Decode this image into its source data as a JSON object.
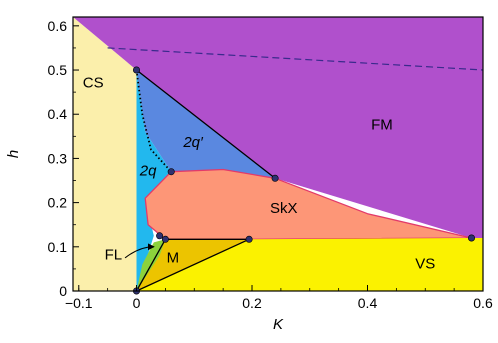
{
  "chart_data": {
    "type": "area",
    "title": "",
    "xlabel": "K",
    "ylabel": "h",
    "xlim": [
      -0.11,
      0.6
    ],
    "ylim": [
      0,
      0.62
    ],
    "xticks": [
      {
        "value": -0.1,
        "label": "−0.1"
      },
      {
        "value": 0,
        "label": "0"
      },
      {
        "value": 0.2,
        "label": "0.2"
      },
      {
        "value": 0.4,
        "label": "0.4"
      },
      {
        "value": 0.6,
        "label": "0.6"
      }
    ],
    "yticks": [
      {
        "value": 0,
        "label": "0"
      },
      {
        "value": 0.1,
        "label": "0.1"
      },
      {
        "value": 0.2,
        "label": "0.2"
      },
      {
        "value": 0.3,
        "label": "0.3"
      },
      {
        "value": 0.4,
        "label": "0.4"
      },
      {
        "value": 0.5,
        "label": "0.5"
      },
      {
        "value": 0.6,
        "label": "0.6"
      }
    ],
    "regions": [
      {
        "label": "CS",
        "color": "#fbefab",
        "label_at": [
          -0.075,
          0.47
        ],
        "polygon": [
          [
            -0.11,
            0
          ],
          [
            0,
            0
          ],
          [
            0,
            0.5
          ],
          [
            -0.11,
            0.62
          ]
        ]
      },
      {
        "label": "FM",
        "color": "#b050cc",
        "label_at": [
          0.425,
          0.375
        ],
        "polygon": [
          [
            -0.11,
            0.62
          ],
          [
            0.6,
            0.62
          ],
          [
            0.6,
            0.12
          ],
          [
            0.58,
            0.12
          ],
          [
            0.24,
            0.255
          ],
          [
            0,
            0.5
          ]
        ]
      },
      {
        "label": "2q′",
        "color": "#5a88e0",
        "label_at": [
          0.098,
          0.335
        ],
        "polygon": [
          [
            0,
            0.5
          ],
          [
            0.24,
            0.255
          ],
          [
            0.06,
            0.27
          ],
          [
            0.015,
            0.36
          ]
        ]
      },
      {
        "label": "2q",
        "color": "#22b8ee",
        "label_at": [
          0.02,
          0.27
        ],
        "polygon": [
          [
            0,
            0.5
          ],
          [
            0.015,
            0.36
          ],
          [
            0.06,
            0.27
          ],
          [
            0.015,
            0.21
          ],
          [
            0.03,
            0.125
          ],
          [
            0.0,
            0.0
          ]
        ]
      },
      {
        "label": "SkX",
        "color": "#fd9677",
        "label_at": [
          0.255,
          0.185
        ],
        "polygon": [
          [
            0.06,
            0.27
          ],
          [
            0.15,
            0.275
          ],
          [
            0.24,
            0.255
          ],
          [
            0.4,
            0.175
          ],
          [
            0.58,
            0.12
          ],
          [
            0.3,
            0.118
          ],
          [
            0.195,
            0.117
          ],
          [
            0.05,
            0.117
          ],
          [
            0.02,
            0.15
          ],
          [
            0.015,
            0.21
          ]
        ]
      },
      {
        "label": "VS",
        "color": "#fbf200",
        "label_at": [
          0.5,
          0.06
        ],
        "polygon": [
          [
            0,
            0
          ],
          [
            0.195,
            0.117
          ],
          [
            0.58,
            0.12
          ],
          [
            0.6,
            0.12
          ],
          [
            0.6,
            0
          ],
          [
            0,
            0
          ]
        ]
      },
      {
        "label": "M",
        "color": "#ecc400",
        "label_at": [
          0.063,
          0.073
        ],
        "polygon": [
          [
            0,
            0
          ],
          [
            0.05,
            0.117
          ],
          [
            0.195,
            0.117
          ]
        ]
      },
      {
        "label": "FL",
        "color": "#8cd23c",
        "label_at": [
          -0.04,
          0.08
        ],
        "polygon": [
          [
            0,
            0
          ],
          [
            0.01,
            0.06
          ],
          [
            0.03,
            0.11
          ],
          [
            0.05,
            0.117
          ],
          [
            0.04,
            0.08
          ]
        ]
      }
    ],
    "boundaries": [
      {
        "style": "solid",
        "color": "#000000",
        "points": [
          [
            0,
            0.5
          ],
          [
            0.24,
            0.255
          ]
        ]
      },
      {
        "style": "dotted",
        "color": "#000000",
        "points": [
          [
            0,
            0.5
          ],
          [
            0.01,
            0.4
          ],
          [
            0.025,
            0.32
          ],
          [
            0.06,
            0.27
          ]
        ]
      },
      {
        "style": "dashed",
        "color": "#3a2a8c",
        "points": [
          [
            -0.05,
            0.55
          ],
          [
            0.6,
            0.5
          ]
        ]
      },
      {
        "style": "solid",
        "color": "#000000",
        "points": [
          [
            0,
            0
          ],
          [
            0.195,
            0.117
          ]
        ]
      },
      {
        "style": "solid",
        "color": "#000000",
        "points": [
          [
            0,
            0
          ],
          [
            0.05,
            0.117
          ]
        ]
      },
      {
        "style": "solid",
        "color": "#000000",
        "points": [
          [
            0.05,
            0.117
          ],
          [
            0.195,
            0.117
          ]
        ]
      }
    ],
    "points": [
      {
        "x": 0,
        "y": 0.5
      },
      {
        "x": 0.06,
        "y": 0.27
      },
      {
        "x": 0.24,
        "y": 0.255
      },
      {
        "x": 0.58,
        "y": 0.12
      },
      {
        "x": 0.195,
        "y": 0.117
      },
      {
        "x": 0.05,
        "y": 0.117
      },
      {
        "x": 0.04,
        "y": 0.125
      },
      {
        "x": 0,
        "y": 0
      }
    ],
    "annotation": {
      "label": "FL",
      "arrow_from": [
        -0.02,
        0.075
      ],
      "arrow_to": [
        0.03,
        0.1
      ]
    },
    "grid": false,
    "legend": "none"
  }
}
